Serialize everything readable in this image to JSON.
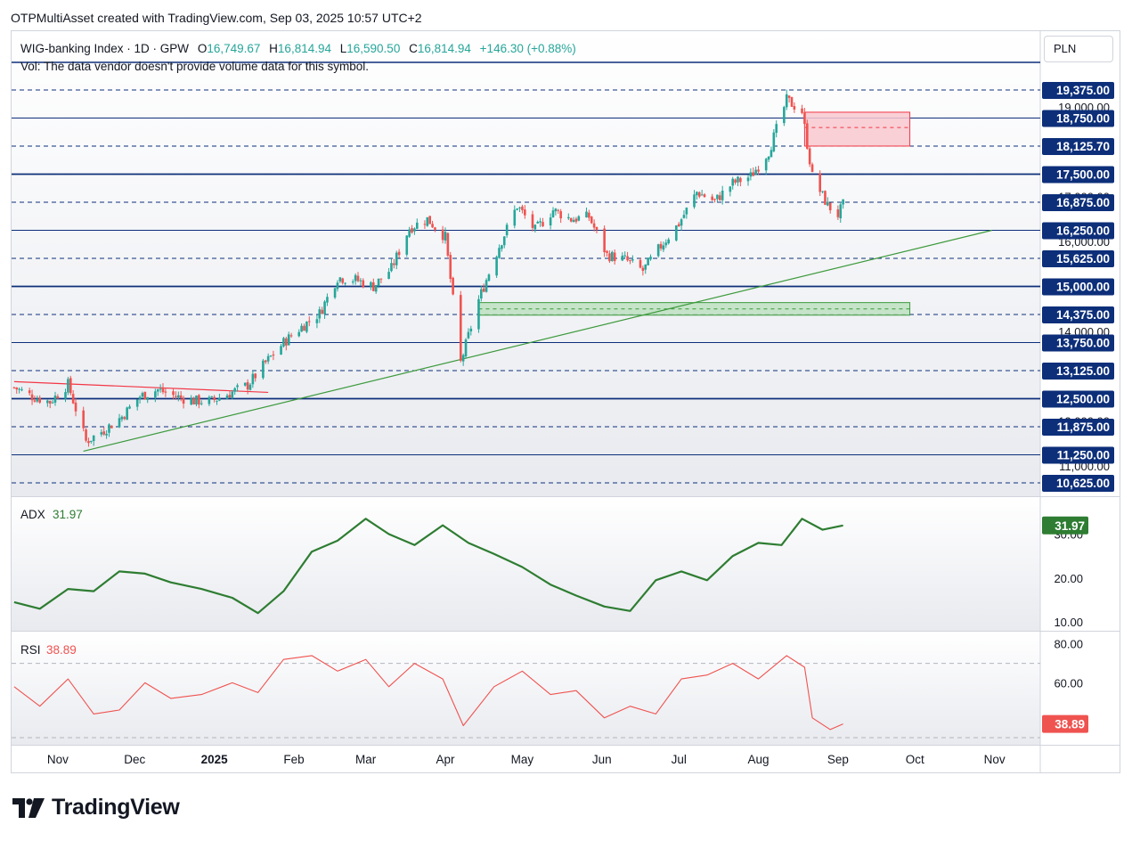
{
  "header": {
    "text": "OTPMultiAsset created with TradingView.com, Sep 03, 2025 10:57 UTC+2"
  },
  "legend": {
    "symbol": "WIG-banking Index · 1D · GPW",
    "o_label": "O",
    "o_value": "16,749.67",
    "h_label": "H",
    "h_value": "16,814.94",
    "l_label": "L",
    "l_value": "16,590.50",
    "c_label": "C",
    "c_value": "16,814.94",
    "change": "+146.30 (+0.88%)",
    "vol_note": "Vol: The data vendor doesn't provide volume data for this symbol."
  },
  "currency_button": "PLN",
  "footer": {
    "brand": "TradingView"
  },
  "colors": {
    "up": "#26a69a",
    "down": "#ef5350",
    "level_line": "#0d2f7a",
    "label_bg": "#0d2f7a",
    "trend_green": "#3d9a3d",
    "trend_red": "#f23645",
    "adx": "#2e7d32",
    "rsi": "#ef5350",
    "zone_red": "#f8c8cf",
    "zone_green": "#bde0c0"
  },
  "chart_data": [
    {
      "type": "candlestick",
      "title": "WIG-banking Index · 1D · GPW",
      "currency": "PLN",
      "x_tick_labels": [
        "Nov",
        "Dec",
        "2025",
        "Feb",
        "Mar",
        "Apr",
        "May",
        "Jun",
        "Jul",
        "Aug",
        "Sep",
        "Oct",
        "Nov"
      ],
      "y_tick_labels": [
        "19,000.00",
        "17,000.00",
        "16,000.00",
        "14,000.00",
        "12,000.00",
        "11,000.00"
      ],
      "ylim": [
        10440,
        20200
      ],
      "level_labels": [
        {
          "price": 19375,
          "text": "19,375.00",
          "style": "dashed"
        },
        {
          "price": 18750,
          "text": "18,750.00",
          "style": "solid"
        },
        {
          "price": 18125.7,
          "text": "18,125.70",
          "style": "dashed"
        },
        {
          "price": 17500,
          "text": "17,500.00",
          "style": "solid-bold"
        },
        {
          "price": 16875,
          "text": "16,875.00",
          "style": "dashed"
        },
        {
          "price": 16250,
          "text": "16,250.00",
          "style": "solid"
        },
        {
          "price": 15625,
          "text": "15,625.00",
          "style": "dashed"
        },
        {
          "price": 15000,
          "text": "15,000.00",
          "style": "solid-bold"
        },
        {
          "price": 14375,
          "text": "14,375.00",
          "style": "dashed"
        },
        {
          "price": 13750,
          "text": "13,750.00",
          "style": "solid"
        },
        {
          "price": 13125,
          "text": "13,125.00",
          "style": "dashed"
        },
        {
          "price": 12500,
          "text": "12,500.00",
          "style": "solid-bold"
        },
        {
          "price": 11875,
          "text": "11,875.00",
          "style": "dashed"
        },
        {
          "price": 11250,
          "text": "11,250.00",
          "style": "solid"
        },
        {
          "price": 10625,
          "text": "10,625.00",
          "style": "dashed"
        }
      ],
      "trendlines": [
        {
          "color": "trend_green",
          "from": [
            "2024-11-11",
            11330
          ],
          "to": [
            "2025-10-31",
            16250
          ]
        },
        {
          "color": "trend_red",
          "from": [
            "2024-10-15",
            12880
          ],
          "to": [
            "2025-01-22",
            12640
          ]
        }
      ],
      "zones": [
        {
          "color": "zone_red",
          "from": "2025-08-19",
          "to": "2025-09-29",
          "low": 18125.7,
          "high": 18880,
          "mid": 18540
        },
        {
          "color": "zone_green",
          "from": "2025-04-14",
          "to": "2025-09-29",
          "low": 14360,
          "high": 14640,
          "mid": 14500
        }
      ],
      "series": [
        {
          "date": "2024-10-15",
          "close": 12750
        },
        {
          "date": "2024-10-22",
          "close": 12550
        },
        {
          "date": "2024-10-29",
          "close": 12430
        },
        {
          "date": "2024-11-05",
          "close": 12820
        },
        {
          "date": "2024-11-12",
          "close": 11550
        },
        {
          "date": "2024-11-19",
          "close": 11800
        },
        {
          "date": "2024-11-26",
          "close": 12100
        },
        {
          "date": "2024-12-03",
          "close": 12550
        },
        {
          "date": "2024-12-10",
          "close": 12700
        },
        {
          "date": "2024-12-17",
          "close": 12550
        },
        {
          "date": "2024-12-24",
          "close": 12450
        },
        {
          "date": "2024-12-31",
          "close": 12450
        },
        {
          "date": "2025-01-07",
          "close": 12620
        },
        {
          "date": "2025-01-14",
          "close": 12800
        },
        {
          "date": "2025-01-21",
          "close": 13300
        },
        {
          "date": "2025-01-28",
          "close": 13750
        },
        {
          "date": "2025-02-04",
          "close": 14100
        },
        {
          "date": "2025-02-11",
          "close": 14400
        },
        {
          "date": "2025-02-18",
          "close": 15200
        },
        {
          "date": "2025-02-25",
          "close": 15150
        },
        {
          "date": "2025-03-04",
          "close": 15000
        },
        {
          "date": "2025-03-11",
          "close": 15400
        },
        {
          "date": "2025-03-18",
          "close": 16300
        },
        {
          "date": "2025-03-25",
          "close": 16500
        },
        {
          "date": "2025-04-01",
          "close": 16100
        },
        {
          "date": "2025-04-07",
          "close": 13300
        },
        {
          "date": "2025-04-14",
          "close": 14700
        },
        {
          "date": "2025-04-22",
          "close": 15900
        },
        {
          "date": "2025-04-29",
          "close": 16800
        },
        {
          "date": "2025-05-06",
          "close": 16250
        },
        {
          "date": "2025-05-13",
          "close": 16700
        },
        {
          "date": "2025-05-20",
          "close": 16500
        },
        {
          "date": "2025-05-27",
          "close": 16550
        },
        {
          "date": "2025-06-03",
          "close": 15700
        },
        {
          "date": "2025-06-10",
          "close": 15600
        },
        {
          "date": "2025-06-17",
          "close": 15350
        },
        {
          "date": "2025-06-24",
          "close": 15900
        },
        {
          "date": "2025-07-01",
          "close": 16400
        },
        {
          "date": "2025-07-08",
          "close": 17100
        },
        {
          "date": "2025-07-15",
          "close": 16900
        },
        {
          "date": "2025-07-22",
          "close": 17300
        },
        {
          "date": "2025-07-29",
          "close": 17450
        },
        {
          "date": "2025-08-05",
          "close": 18000
        },
        {
          "date": "2025-08-12",
          "close": 19150
        },
        {
          "date": "2025-08-18",
          "close": 18900
        },
        {
          "date": "2025-08-22",
          "close": 17450
        },
        {
          "date": "2025-08-28",
          "close": 16800
        },
        {
          "date": "2025-09-01",
          "close": 16600
        },
        {
          "date": "2025-09-03",
          "close": 16814.94
        }
      ]
    },
    {
      "type": "line",
      "name": "ADX",
      "value_label": "31.97",
      "y_tick_labels": [
        "30.00",
        "20.00",
        "10.00"
      ],
      "ylim": [
        9,
        37
      ],
      "x": [
        "2024-10-15",
        "2024-10-25",
        "2024-11-05",
        "2024-11-15",
        "2024-11-25",
        "2024-12-05",
        "2024-12-15",
        "2024-12-27",
        "2025-01-08",
        "2025-01-18",
        "2025-01-28",
        "2025-02-08",
        "2025-02-18",
        "2025-03-01",
        "2025-03-10",
        "2025-03-20",
        "2025-03-31",
        "2025-04-10",
        "2025-04-20",
        "2025-05-01",
        "2025-05-12",
        "2025-05-22",
        "2025-06-02",
        "2025-06-12",
        "2025-06-22",
        "2025-07-02",
        "2025-07-12",
        "2025-07-22",
        "2025-08-01",
        "2025-08-10",
        "2025-08-18",
        "2025-08-26",
        "2025-09-03"
      ],
      "values": [
        14.5,
        13.0,
        17.5,
        17.0,
        21.5,
        21.0,
        19.0,
        17.5,
        15.5,
        12.0,
        17.0,
        26.0,
        28.5,
        33.5,
        30.0,
        27.5,
        32.0,
        28.0,
        25.5,
        22.5,
        18.5,
        16.0,
        13.5,
        12.5,
        19.5,
        21.5,
        19.5,
        25.0,
        28.0,
        27.5,
        33.5,
        31.0,
        31.97
      ]
    },
    {
      "type": "line",
      "name": "RSI",
      "value_label": "38.89",
      "y_tick_labels": [
        "80.00",
        "60.00"
      ],
      "ylim": [
        30,
        84
      ],
      "x": [
        "2024-10-15",
        "2024-10-25",
        "2024-11-05",
        "2024-11-15",
        "2024-11-25",
        "2024-12-05",
        "2024-12-15",
        "2024-12-27",
        "2025-01-08",
        "2025-01-18",
        "2025-01-28",
        "2025-02-08",
        "2025-02-18",
        "2025-03-01",
        "2025-03-10",
        "2025-03-20",
        "2025-03-31",
        "2025-04-08",
        "2025-04-20",
        "2025-05-01",
        "2025-05-12",
        "2025-05-22",
        "2025-06-02",
        "2025-06-12",
        "2025-06-22",
        "2025-07-02",
        "2025-07-12",
        "2025-07-22",
        "2025-08-01",
        "2025-08-12",
        "2025-08-19",
        "2025-08-22",
        "2025-08-29",
        "2025-09-03"
      ],
      "values": [
        58,
        48,
        62,
        44,
        46,
        60,
        52,
        54,
        60,
        55,
        72,
        74,
        66,
        72,
        58,
        70,
        62,
        38,
        58,
        66,
        54,
        56,
        42,
        48,
        44,
        62,
        64,
        70,
        62,
        74,
        68,
        42,
        36,
        38.89
      ]
    }
  ]
}
